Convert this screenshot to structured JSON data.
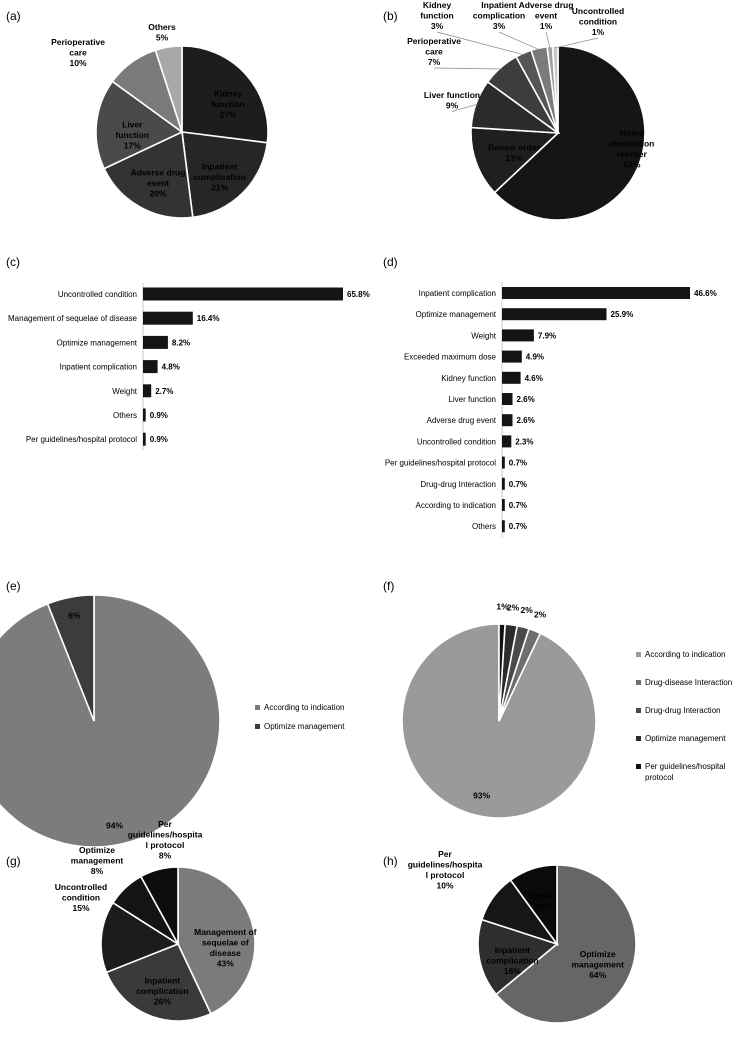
{
  "panels": [
    "(a)",
    "(b)",
    "(c)",
    "(d)",
    "(e)",
    "(f)",
    "(g)",
    "(h)"
  ],
  "chart_data": [
    {
      "panel": "(a)",
      "type": "pie",
      "slices": [
        {
          "label": "Kidney function",
          "value": 27,
          "text": "27%",
          "color": "#1d1d1d",
          "label_color": "#555555"
        },
        {
          "label": "Inpatient complication",
          "value": 21,
          "text": "21%",
          "color": "#262626",
          "label_color": "#8a8a8a"
        },
        {
          "label": "Adverse drug event",
          "value": 20,
          "text": "20%",
          "color": "#333333",
          "label_color": "#9a9a9a"
        },
        {
          "label": "Liver function",
          "value": 17,
          "text": "17%",
          "color": "#4a4a4a",
          "label_color": "#000000"
        },
        {
          "label": "Perioperative care",
          "value": 10,
          "text": "10%",
          "color": "#7a7a7a",
          "label_color": "#000000"
        },
        {
          "label": "Others",
          "value": 5,
          "text": "5%",
          "color": "#a8a8a8",
          "label_color": "#000000"
        }
      ]
    },
    {
      "panel": "(b)",
      "type": "pie",
      "slices": [
        {
          "label": "Home medication reorder",
          "value": 63,
          "text": "63%",
          "color": "#151515",
          "label_color": "#3a3a3a"
        },
        {
          "label": "Renew order",
          "value": 13,
          "text": "13%",
          "color": "#1f1f1f",
          "label_color": "#555555"
        },
        {
          "label": "Liver function",
          "value": 9,
          "text": "9%",
          "color": "#2b2b2b",
          "label_color": "#000000"
        },
        {
          "label": "Perioperative care",
          "value": 7,
          "text": "7%",
          "color": "#3d3d3d",
          "label_color": "#000000"
        },
        {
          "label": "Kidney function",
          "value": 3,
          "text": "3%",
          "color": "#555555",
          "label_color": "#000000"
        },
        {
          "label": "Inpatient complication",
          "value": 3,
          "text": "3%",
          "color": "#7a7a7a",
          "label_color": "#000000"
        },
        {
          "label": "Adverse drug event",
          "value": 1,
          "text": "1%",
          "color": "#a0a0a0",
          "label_color": "#000000"
        },
        {
          "label": "Uncontrolled condition",
          "value": 1,
          "text": "1%",
          "color": "#c8c8c8",
          "label_color": "#000000"
        }
      ]
    },
    {
      "panel": "(c)",
      "type": "bar",
      "orientation": "horizontal",
      "xlim": [
        0,
        65.8
      ],
      "categories": [
        "Uncontrolled condition",
        "Management of sequelae of disease",
        "Optimize management",
        "Inpatient complication",
        "Weight",
        "Others",
        "Per guidelines/hospital protocol"
      ],
      "values": [
        65.8,
        16.4,
        8.2,
        4.8,
        2.7,
        0.9,
        0.9
      ],
      "value_labels": [
        "65.8%",
        "16.4%",
        "8.2%",
        "4.8%",
        "2.7%",
        "0.9%",
        "0.9%"
      ]
    },
    {
      "panel": "(d)",
      "type": "bar",
      "orientation": "horizontal",
      "xlim": [
        0,
        46.6
      ],
      "categories": [
        "Inpatient complication",
        "Optimize management",
        "Weight",
        "Exceeded maximum dose",
        "Kidney function",
        "Liver function",
        "Adverse drug event",
        "Uncontrolled condition",
        "Per guidelines/hospital protocol",
        "Drug-drug Interaction",
        "According to indication",
        "Others"
      ],
      "values": [
        46.6,
        25.9,
        7.9,
        4.9,
        4.6,
        2.6,
        2.6,
        2.3,
        0.7,
        0.7,
        0.7,
        0.7
      ],
      "value_labels": [
        "46.6%",
        "25.9%",
        "7.9%",
        "4.9%",
        "4.6%",
        "2.6%",
        "2.6%",
        "2.3%",
        "0.7%",
        "0.7%",
        "0.7%",
        "0.7%"
      ]
    },
    {
      "panel": "(e)",
      "type": "pie",
      "legend": "right",
      "slices": [
        {
          "label": "According to indication",
          "value": 94,
          "text": "94%",
          "color": "#7c7c7c"
        },
        {
          "label": "Optimize management",
          "value": 6,
          "text": "6%",
          "color": "#3c3c3c"
        }
      ]
    },
    {
      "panel": "(f)",
      "type": "pie",
      "legend": "right",
      "slices": [
        {
          "label": "According to indication",
          "value": 93,
          "text": "93%",
          "color": "#9a9a9a"
        },
        {
          "label": "Drug-disease Interaction",
          "value": 2,
          "text": "2%",
          "color": "#6e6e6e"
        },
        {
          "label": "Drug-drug Interaction",
          "value": 2,
          "text": "2%",
          "color": "#4a4a4a"
        },
        {
          "label": "Optimize management",
          "value": 2,
          "text": "2%",
          "color": "#2c2c2c"
        },
        {
          "label": "Per guidelines/hospital protocol",
          "value": 1,
          "text": "1%",
          "color": "#111111"
        }
      ]
    },
    {
      "panel": "(g)",
      "type": "pie",
      "slices": [
        {
          "label": "Management of sequelae of disease",
          "value": 43,
          "text": "43%",
          "color": "#7b7b7b",
          "label_color": "#000000"
        },
        {
          "label": "Inpatient complication",
          "value": 26,
          "text": "26%",
          "color": "#3a3a3a",
          "label_color": "#ffffff"
        },
        {
          "label": "Uncontrolled condition",
          "value": 15,
          "text": "15%",
          "color": "#1c1c1c",
          "label_color": "#000000"
        },
        {
          "label": "Optimize management",
          "value": 8,
          "text": "8%",
          "color": "#141414",
          "label_color": "#000000"
        },
        {
          "label": "Per guidelines/hospita l protocol",
          "value": 8,
          "text": "8%",
          "color": "#0c0c0c",
          "label_color": "#000000"
        }
      ]
    },
    {
      "panel": "(h)",
      "type": "pie",
      "slices": [
        {
          "label": "Optimize management",
          "value": 64,
          "text": "64%",
          "color": "#666666",
          "label_color": "#000000"
        },
        {
          "label": "Inpatient complication",
          "value": 16,
          "text": "16%",
          "color": "#2e2e2e",
          "label_color": "#7a7a7a"
        },
        {
          "label": "Per guidelines/hospita l protocol",
          "value": 10,
          "text": "10%",
          "color": "#161616",
          "label_color": "#000000"
        },
        {
          "label": "Other",
          "value": 10,
          "text": "10%",
          "color": "#0a0a0a",
          "label_color": "#ffffff"
        }
      ]
    }
  ]
}
